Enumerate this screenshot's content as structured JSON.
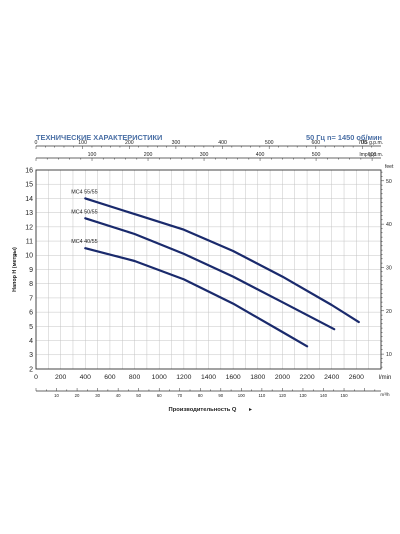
{
  "header": {
    "title": "ТЕХНИЧЕСКИЕ ХАРАКТЕРИСТИКИ",
    "subtitle": "50 Гц  n= 1450 об/мин"
  },
  "colors": {
    "accent": "#4a6fa5",
    "curve": "#1a2a6c",
    "grid": "#c4c4c4",
    "axis": "#333333"
  },
  "chart_data": {
    "type": "line",
    "title": "",
    "xlabel": "Производительность  Q",
    "ylabel": "Напор H (метры)",
    "xlim": [
      0,
      2800
    ],
    "ylim": [
      2,
      16
    ],
    "x_unit": "l/min",
    "grid": true,
    "x_ticks": [
      0,
      200,
      400,
      600,
      800,
      1000,
      1200,
      1400,
      1600,
      1800,
      2000,
      2200,
      2400,
      2600
    ],
    "y_ticks": [
      2,
      3,
      4,
      5,
      6,
      7,
      8,
      9,
      10,
      11,
      12,
      13,
      14,
      15,
      16
    ],
    "secondary_axes": {
      "top_us": {
        "unit": "US g.p.m.",
        "ticks": [
          0,
          100,
          200,
          300,
          400,
          500,
          600,
          700
        ]
      },
      "top_imp": {
        "unit": "Imp g.p.m.",
        "ticks": [
          100,
          200,
          300,
          400,
          500,
          600
        ]
      },
      "bottom_m3h": {
        "unit": "m³/h",
        "ticks": [
          10,
          20,
          30,
          40,
          50,
          60,
          70,
          80,
          90,
          100,
          110,
          120,
          130,
          140,
          150
        ]
      },
      "right_feet": {
        "unit": "feet",
        "ticks": [
          10,
          20,
          30,
          40,
          50
        ]
      }
    },
    "series": [
      {
        "name": "MC4 55/55",
        "x": [
          400,
          800,
          1200,
          1600,
          2000,
          2400,
          2620
        ],
        "y": [
          14.0,
          12.9,
          11.8,
          10.3,
          8.5,
          6.5,
          5.3
        ]
      },
      {
        "name": "MC4 50/55",
        "x": [
          400,
          800,
          1200,
          1600,
          2000,
          2420
        ],
        "y": [
          12.6,
          11.5,
          10.1,
          8.5,
          6.7,
          4.8
        ]
      },
      {
        "name": "MC4 40/55",
        "x": [
          400,
          800,
          1200,
          1600,
          2000,
          2200
        ],
        "y": [
          10.5,
          9.6,
          8.3,
          6.6,
          4.6,
          3.6
        ]
      }
    ]
  }
}
